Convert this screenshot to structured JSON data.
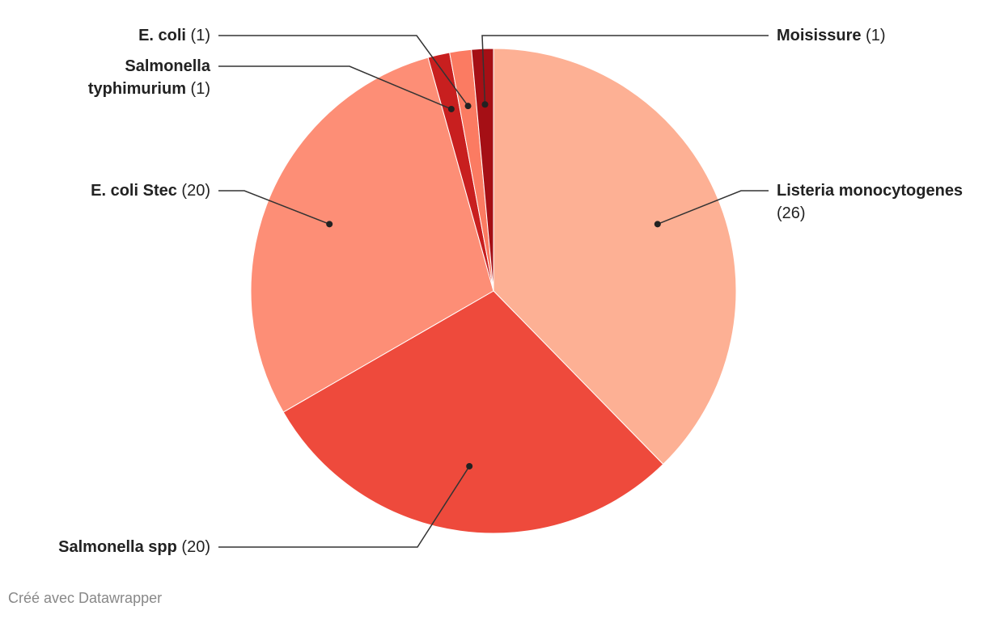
{
  "chart_data": {
    "type": "pie",
    "categories": [
      "Listeria monocytogenes",
      "Salmonella spp",
      "E. coli Stec",
      "Salmonella typhimurium",
      "E. coli",
      "Moisissure"
    ],
    "values": [
      26,
      20,
      20,
      1,
      1,
      1
    ],
    "value_labels": [
      "(26)",
      "(20)",
      "(20)",
      "(1)",
      "(1)",
      "(1)"
    ],
    "colors": [
      "#fdb094",
      "#ee4a3c",
      "#fd8e76",
      "#c81f1f",
      "#fb7b62",
      "#a50f15"
    ],
    "footer": "Créé avec Datawrapper"
  }
}
